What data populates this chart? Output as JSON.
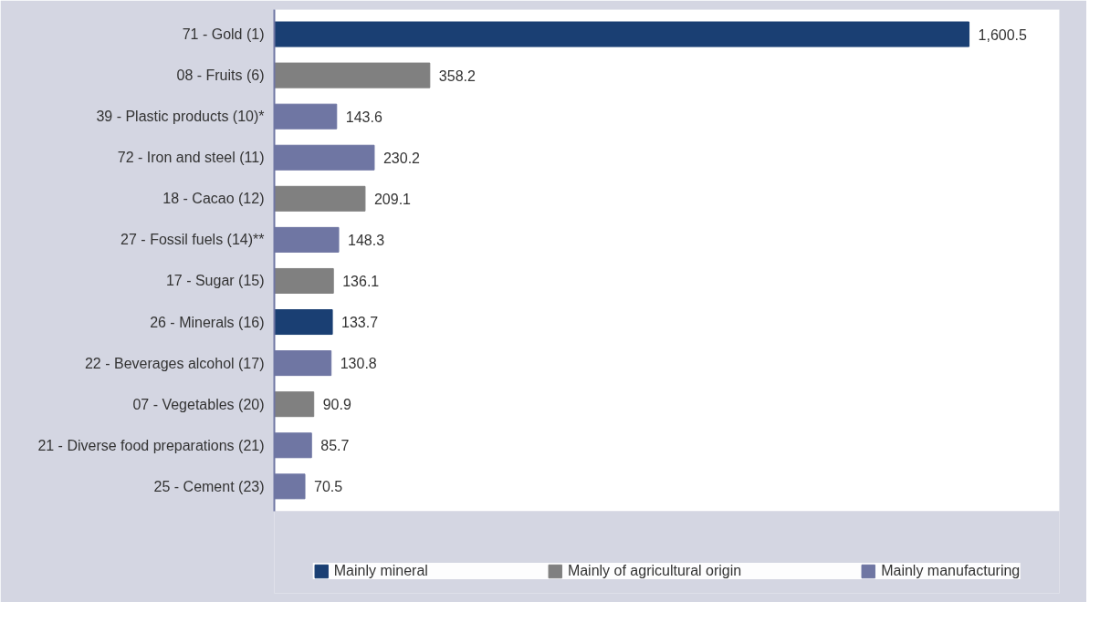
{
  "chart_data": {
    "type": "bar",
    "orientation": "horizontal",
    "categories": [
      "71 - Gold (1)",
      "08 - Fruits (6)",
      "39 - Plastic products (10)*",
      "72 - Iron and steel (11)",
      "18 - Cacao (12)",
      "27 - Fossil fuels (14)**",
      "17 - Sugar (15)",
      "26 - Minerals (16)",
      "22 - Beverages alcohol (17)",
      "07 - Vegetables (20)",
      "21 - Diverse food preparations (21)",
      "25 - Cement (23)"
    ],
    "series": [
      {
        "name": "Mainly mineral",
        "color": "#1a3f73",
        "values": [
          1600.5,
          null,
          null,
          null,
          null,
          null,
          null,
          133.7,
          null,
          null,
          null,
          null
        ],
        "value_labels": [
          "1,600.5",
          null,
          null,
          null,
          null,
          null,
          null,
          "133.7",
          null,
          null,
          null,
          null
        ]
      },
      {
        "name": "Mainly of agricultural origin",
        "color": "#808080",
        "values": [
          null,
          358.2,
          null,
          null,
          209.1,
          null,
          136.1,
          null,
          null,
          90.9,
          null,
          null
        ],
        "value_labels": [
          null,
          "358.2",
          null,
          null,
          "209.1",
          null,
          "136.1",
          null,
          null,
          "90.9",
          null,
          null
        ]
      },
      {
        "name": "Mainly manufacturing",
        "color": "#6f76a3",
        "values": [
          null,
          null,
          143.6,
          230.2,
          null,
          148.3,
          null,
          null,
          130.8,
          null,
          85.7,
          70.5
        ],
        "value_labels": [
          null,
          null,
          "143.6",
          "230.2",
          null,
          "148.3",
          null,
          null,
          "130.8",
          null,
          "85.7",
          "70.5"
        ]
      }
    ],
    "legend": "bottom",
    "grid": false
  }
}
